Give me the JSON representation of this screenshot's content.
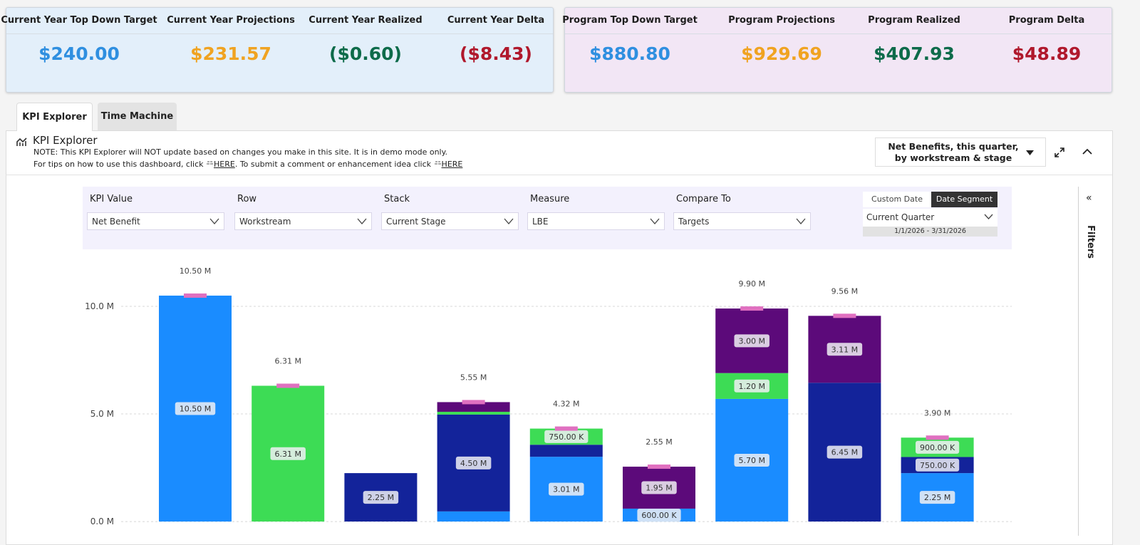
{
  "header": {
    "current_year": [
      {
        "label": "Current Year Top Down Target",
        "value": "$240.00"
      },
      {
        "label": "Current Year Projections",
        "value": "$231.57"
      },
      {
        "label": "Current Year Realized",
        "value": "($0.60)"
      },
      {
        "label": "Current Year Delta",
        "value": "($8.43)"
      }
    ],
    "program": [
      {
        "label": "Program Top Down Target",
        "value": "$880.80"
      },
      {
        "label": "Program Projections",
        "value": "$929.69"
      },
      {
        "label": "Program Realized",
        "value": "$407.93"
      },
      {
        "label": "Program Delta",
        "value": "$48.89"
      }
    ]
  },
  "tabs": [
    "KPI Explorer",
    "Time Machine"
  ],
  "panel": {
    "title": "KPI Explorer",
    "note": "NOTE: This KPI Explorer will NOT update based on changes you make in this site. It is in demo mode only.",
    "tips": [
      "For tips on how to use this dashboard, click",
      "HERE",
      ". To submit a comment or enhancement idea click",
      "HERE"
    ],
    "view_selector": "Net Benefits, this quarter, by workstream & stage"
  },
  "controls": [
    {
      "label": "KPI Value",
      "value": "Net Benefit"
    },
    {
      "label": "Row",
      "value": "Workstream"
    },
    {
      "label": "Stack",
      "value": "Current Stage"
    },
    {
      "label": "Measure",
      "value": "LBE"
    },
    {
      "label": "Compare To",
      "value": "Targets"
    }
  ],
  "date": {
    "options": [
      "Custom Date",
      "Date Segment"
    ],
    "segment": "Current Quarter",
    "range": "1/1/2026 - 3/31/2026"
  },
  "filters_label": "Filters",
  "chart_data": {
    "type": "stacked-bar",
    "ylim": [
      -0.66,
      12.65
    ],
    "yticks": [
      {
        "value": 0,
        "label": "0.0 M"
      },
      {
        "value": 5,
        "label": "5.0 M"
      },
      {
        "value": 10,
        "label": "10.0 M"
      }
    ],
    "grid": true,
    "series": [
      {
        "color": "#1a8cff",
        "values": [
          10.5,
          null,
          null,
          0.47,
          3.01,
          0.6,
          5.7,
          null,
          2.25
        ],
        "value_labels": [
          "10.50 M",
          null,
          null,
          null,
          "3.01 M",
          "600.00 K",
          "5.70 M",
          null,
          "2.25 M"
        ]
      },
      {
        "color": "#13239a",
        "values": [
          null,
          null,
          2.25,
          4.5,
          0.56,
          null,
          null,
          6.45,
          0.75
        ],
        "value_labels": [
          null,
          null,
          "2.25 M",
          "4.50 M",
          null,
          null,
          null,
          "6.45 M",
          "750.00 K"
        ]
      },
      {
        "color": "#3ddc55",
        "values": [
          null,
          6.31,
          null,
          0.13,
          0.75,
          null,
          1.2,
          null,
          0.9
        ],
        "value_labels": [
          null,
          "6.31 M",
          null,
          null,
          "750.00 K",
          null,
          "1.20 M",
          null,
          "900.00 K"
        ]
      },
      {
        "color": "#5c0a7a",
        "values": [
          null,
          null,
          null,
          0.45,
          null,
          1.95,
          3.0,
          3.11,
          null
        ],
        "value_labels": [
          null,
          null,
          null,
          null,
          null,
          "1.95 M",
          "3.00 M",
          "3.11 M",
          null
        ]
      }
    ],
    "totals": {
      "values": [
        10.5,
        6.31,
        null,
        5.55,
        4.32,
        2.55,
        9.9,
        9.56,
        3.9
      ],
      "value_labels": [
        "10.50 M",
        "6.31 M",
        null,
        "5.55 M",
        "4.32 M",
        "2.55 M",
        "9.90 M",
        "9.56 M",
        "3.90 M"
      ]
    },
    "targets": {
      "color": "#e070c0",
      "values": [
        10.5,
        6.31,
        null,
        5.55,
        4.32,
        2.55,
        9.9,
        9.56,
        3.9
      ]
    }
  }
}
